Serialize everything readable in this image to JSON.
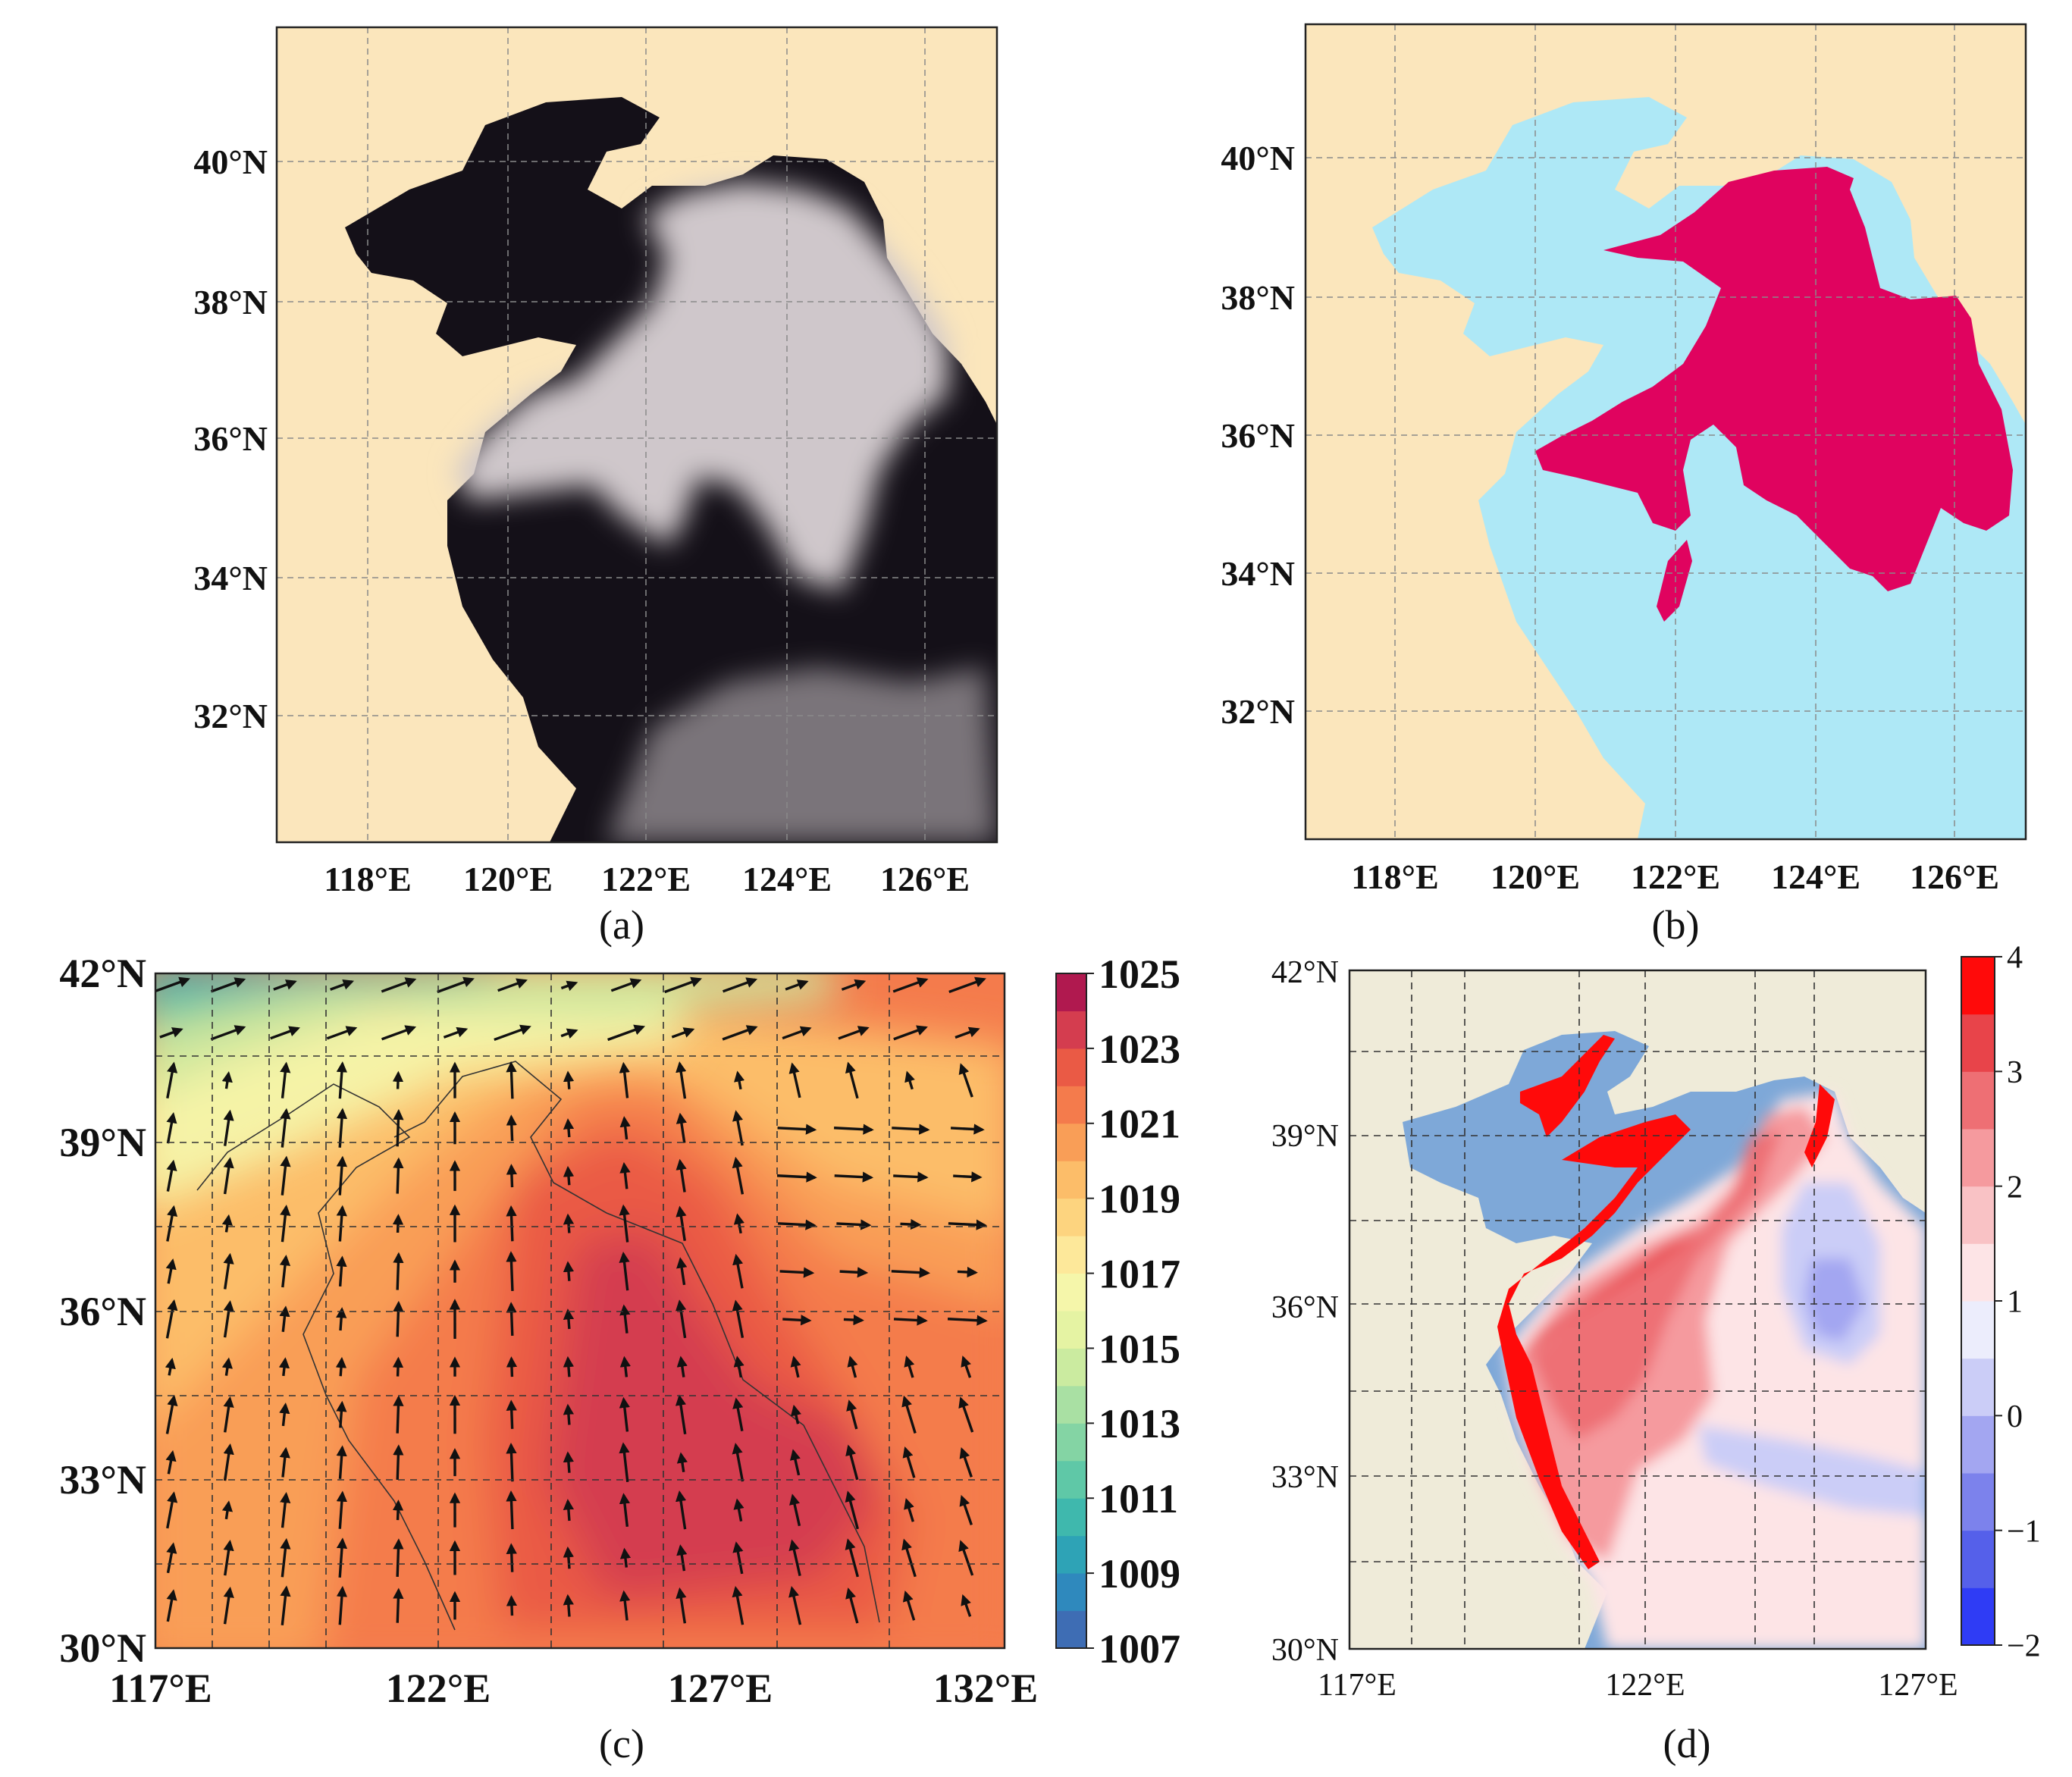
{
  "figure": {
    "panels": [
      {
        "id": "a",
        "caption": "(a)",
        "description": "satellite true-colour image of sea fog",
        "lat_ticks": [
          "40°N",
          "38°N",
          "36°N",
          "34°N",
          "32°N"
        ],
        "lon_ticks": [
          "118°E",
          "120°E",
          "122°E",
          "124°E",
          "126°E"
        ],
        "colors": {
          "land": "#fbe6bc",
          "sea": "#141018",
          "fog": "#cfc7cb"
        }
      },
      {
        "id": "b",
        "caption": "(b)",
        "description": "detected sea fog mask",
        "lat_ticks": [
          "40°N",
          "38°N",
          "36°N",
          "34°N",
          "32°N"
        ],
        "lon_ticks": [
          "118°E",
          "120°E",
          "122°E",
          "124°E",
          "126°E"
        ],
        "colors": {
          "land": "#fbe6bc",
          "sea": "#aee8f6",
          "fog": "#e0035f"
        }
      },
      {
        "id": "c",
        "caption": "(c)",
        "description": "sea level pressure with wind vectors",
        "lat_ticks": [
          "42°N",
          "39°N",
          "36°N",
          "33°N",
          "30°N"
        ],
        "lon_ticks": [
          "117°E",
          "122°E",
          "127°E",
          "132°E"
        ],
        "colorbar_ticks": [
          "1025",
          "1023",
          "1021",
          "1019",
          "1017",
          "1015",
          "1013",
          "1011",
          "1009",
          "1007"
        ]
      },
      {
        "id": "d",
        "caption": "(d)",
        "description": "air-sea temperature difference",
        "lat_ticks": [
          "42°N",
          "39°N",
          "36°N",
          "33°N",
          "30°N"
        ],
        "lon_ticks": [
          "117°E",
          "122°E",
          "127°E"
        ],
        "colorbar_ticks": [
          "4",
          "3",
          "2",
          "1",
          "0",
          "−1",
          "−2"
        ]
      }
    ]
  },
  "chart_data": [
    {
      "type": "heatmap",
      "title": "(c)",
      "variable": "sea level pressure",
      "colorbar_range": [
        1007,
        1025
      ],
      "colorbar_ticks": [
        1025,
        1023,
        1021,
        1019,
        1017,
        1015,
        1013,
        1011,
        1009,
        1007
      ],
      "colorbar_levels": [
        1007,
        1008,
        1009,
        1010,
        1011,
        1012,
        1013,
        1014,
        1015,
        1016,
        1017,
        1018,
        1019,
        1020,
        1021,
        1022,
        1023,
        1024,
        1025
      ],
      "level_colors": [
        "#5e4fa2",
        "#3e6db4",
        "#2f89bd",
        "#2ea3b6",
        "#3fb8ad",
        "#5fc8a7",
        "#84d4a4",
        "#a9e0a3",
        "#cbeba0",
        "#e5f3a3",
        "#f5f6aa",
        "#fde89a",
        "#fdd47f",
        "#fcbd69",
        "#f99e57",
        "#f47b4c",
        "#ea5a45",
        "#d43d4f",
        "#b0194f"
      ],
      "x_range": [
        117,
        132
      ],
      "y_range": [
        30,
        42
      ],
      "x_ticks": [
        117,
        122,
        127,
        132
      ],
      "y_ticks": [
        42,
        39,
        36,
        33,
        30
      ],
      "approx_field": "highest pressure (~1023) centred over the Yellow Sea near 124-128°E, 32-36°N; lowest (~1007-1011) in the north-west corner near 117-121°E, 41-42°N",
      "grid": true,
      "overlay": "wind vectors"
    },
    {
      "type": "heatmap",
      "title": "(d)",
      "variable": "air-sea temperature difference",
      "colorbar_range": [
        -2,
        4
      ],
      "colorbar_ticks": [
        4,
        3,
        2,
        1,
        0,
        -1,
        -2
      ],
      "colorbar_levels": [
        -2,
        -1.5,
        -1,
        -0.5,
        0,
        0.5,
        1,
        1.5,
        2,
        2.5,
        3,
        3.5,
        4
      ],
      "level_colors": [
        "#0a1cff",
        "#2f3cf5",
        "#5560ea",
        "#7c82ec",
        "#a3a6f1",
        "#cbcdf7",
        "#ecedfc",
        "#fde4e6",
        "#f9c2c5",
        "#f59a9e",
        "#ee6f74",
        "#e8444a",
        "#ff0a0a"
      ],
      "x_range": [
        117,
        127
      ],
      "y_range": [
        30,
        42
      ],
      "x_ticks": [
        117,
        122,
        127
      ],
      "y_ticks": [
        42,
        39,
        36,
        33,
        30
      ],
      "approx_field": "values of 3 to 4 along the northern and western coasts and in the Bohai; about 1 to 2 over the central Yellow Sea; near 0 off the Korean coast around 125.5°E, 36°N",
      "grid": true
    }
  ]
}
